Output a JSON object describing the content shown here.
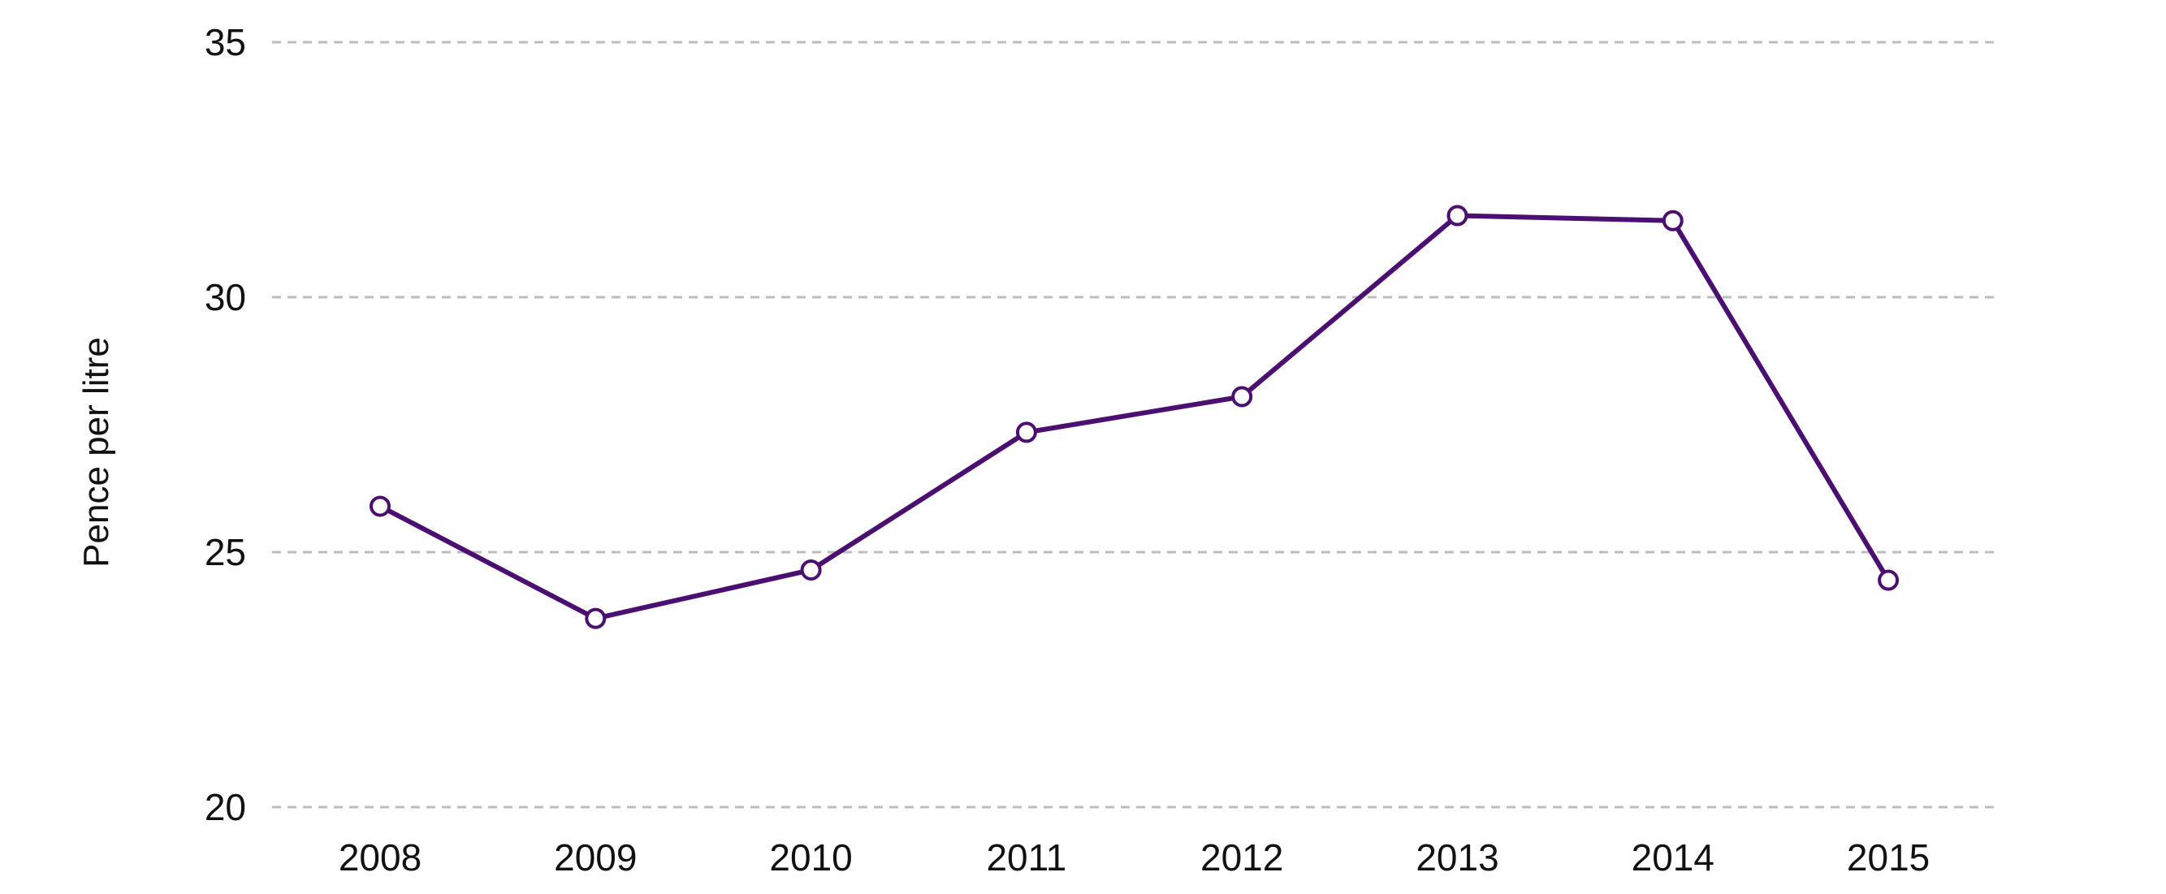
{
  "chart_data": {
    "type": "line",
    "title": "",
    "xlabel": "",
    "ylabel": "Pence per litre",
    "categories": [
      "2008",
      "2009",
      "2010",
      "2011",
      "2012",
      "2013",
      "2014",
      "2015"
    ],
    "series": [
      {
        "values": [
          25.9,
          23.7,
          24.65,
          27.35,
          28.05,
          31.6,
          31.5,
          24.45
        ],
        "color": "#4b0f72"
      }
    ],
    "ylim": [
      20,
      35
    ],
    "yticks": [
      "20",
      "25",
      "30",
      "35"
    ],
    "grid": true,
    "grid_style": "dashed-horizontal",
    "legend": "none"
  }
}
